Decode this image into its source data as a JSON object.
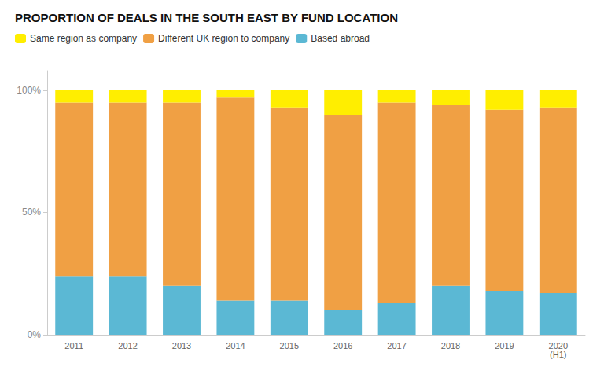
{
  "chart_data": {
    "type": "bar",
    "title": "PROPORTION OF DEALS IN THE SOUTH EAST BY FUND LOCATION",
    "categories": [
      "2011",
      "2012",
      "2013",
      "2014",
      "2015",
      "2016",
      "2017",
      "2018",
      "2019",
      "2020\n(H1)"
    ],
    "series": [
      {
        "name": "Same region as company",
        "color": "#FFEE00",
        "values": [
          5,
          5,
          5,
          3,
          7,
          10,
          5,
          6,
          8,
          7
        ]
      },
      {
        "name": "Different UK region to company",
        "color": "#F0A044",
        "values": [
          71,
          71,
          75,
          83,
          79,
          80,
          82,
          74,
          74,
          76
        ]
      },
      {
        "name": "Based abroad",
        "color": "#5BB8D4",
        "values": [
          24,
          24,
          20,
          14,
          14,
          10,
          13,
          20,
          18,
          17
        ]
      }
    ],
    "stacked": true,
    "ylim": [
      0,
      108
    ],
    "yticks": [
      {
        "value": 0,
        "label": "0%"
      },
      {
        "value": 50,
        "label": "50%"
      },
      {
        "value": 100,
        "label": "100%"
      }
    ],
    "grid": false,
    "legend": "top"
  }
}
